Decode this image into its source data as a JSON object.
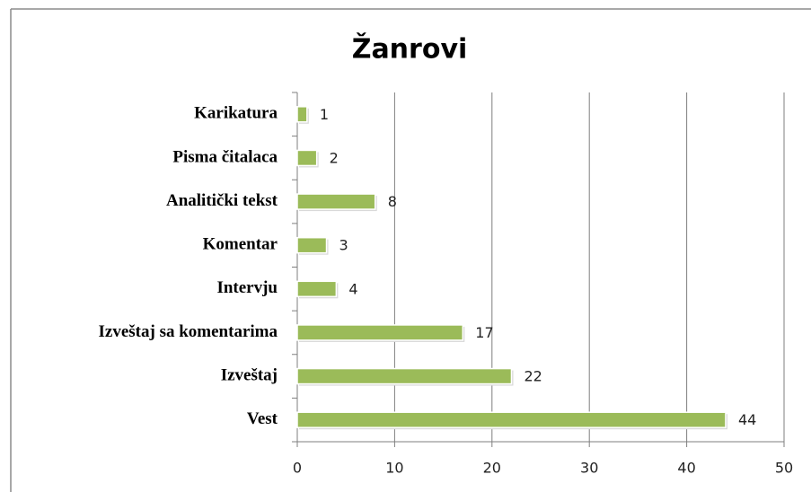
{
  "chart_data": {
    "type": "bar",
    "orientation": "horizontal",
    "title": "Žanrovi",
    "categories": [
      "Karikatura",
      "Pisma čitalaca",
      "Analitički tekst",
      "Komentar",
      "Intervju",
      "Izveštaj sa komentarima",
      "Izveštaj",
      "Vest"
    ],
    "values": [
      1,
      2,
      8,
      3,
      4,
      17,
      22,
      44
    ],
    "color": "#9bbb59",
    "xlim": [
      0,
      50
    ],
    "xticks": [
      0,
      10,
      20,
      30,
      40,
      50
    ],
    "grid": true
  }
}
